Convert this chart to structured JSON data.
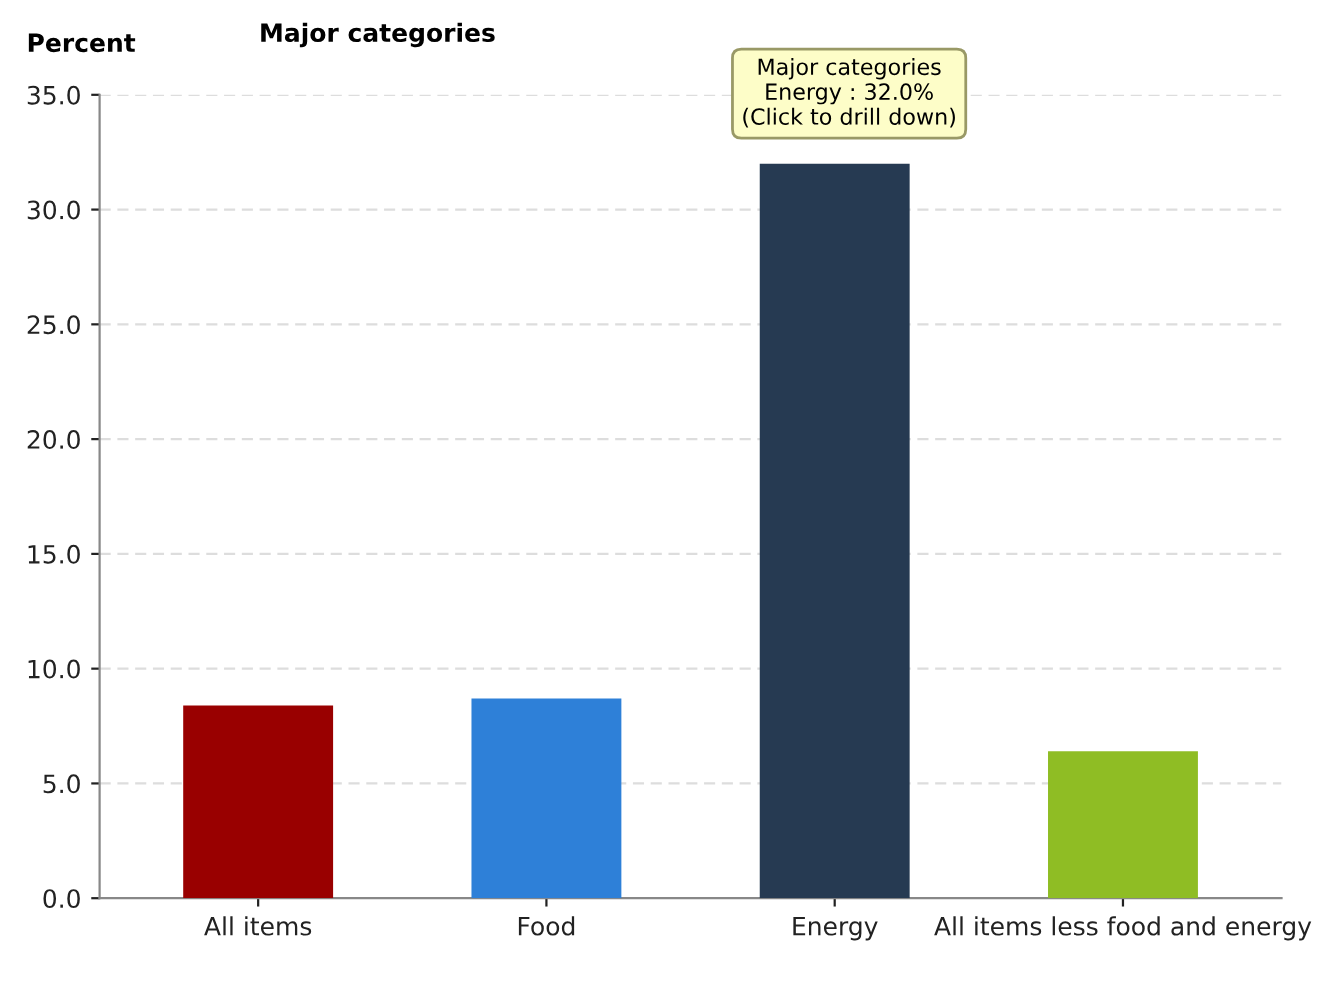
{
  "chart_data": {
    "type": "bar",
    "title": "Major categories",
    "ylabel": "Percent",
    "categories": [
      "All items",
      "Food",
      "Energy",
      "All items less food and energy"
    ],
    "values": [
      8.4,
      8.7,
      32.0,
      6.4
    ],
    "colors": [
      "#990000",
      "#2e80d8",
      "#263a52",
      "#8fbd24"
    ],
    "ylim": [
      0,
      35
    ],
    "yticks": [
      {
        "value": 0,
        "label": "0.0"
      },
      {
        "value": 5,
        "label": "5.0"
      },
      {
        "value": 10,
        "label": "10.0"
      },
      {
        "value": 15,
        "label": "15.0"
      },
      {
        "value": 20,
        "label": "20.0"
      },
      {
        "value": 25,
        "label": "25.0"
      },
      {
        "value": 30,
        "label": "30.0"
      },
      {
        "value": 35,
        "label": "35.0"
      }
    ],
    "grid": "y",
    "annotations": [
      {
        "text": "Major categories\nEnergy : 32.0%\n(Click to drill down)",
        "x": "Energy",
        "y": 32.0
      }
    ]
  }
}
